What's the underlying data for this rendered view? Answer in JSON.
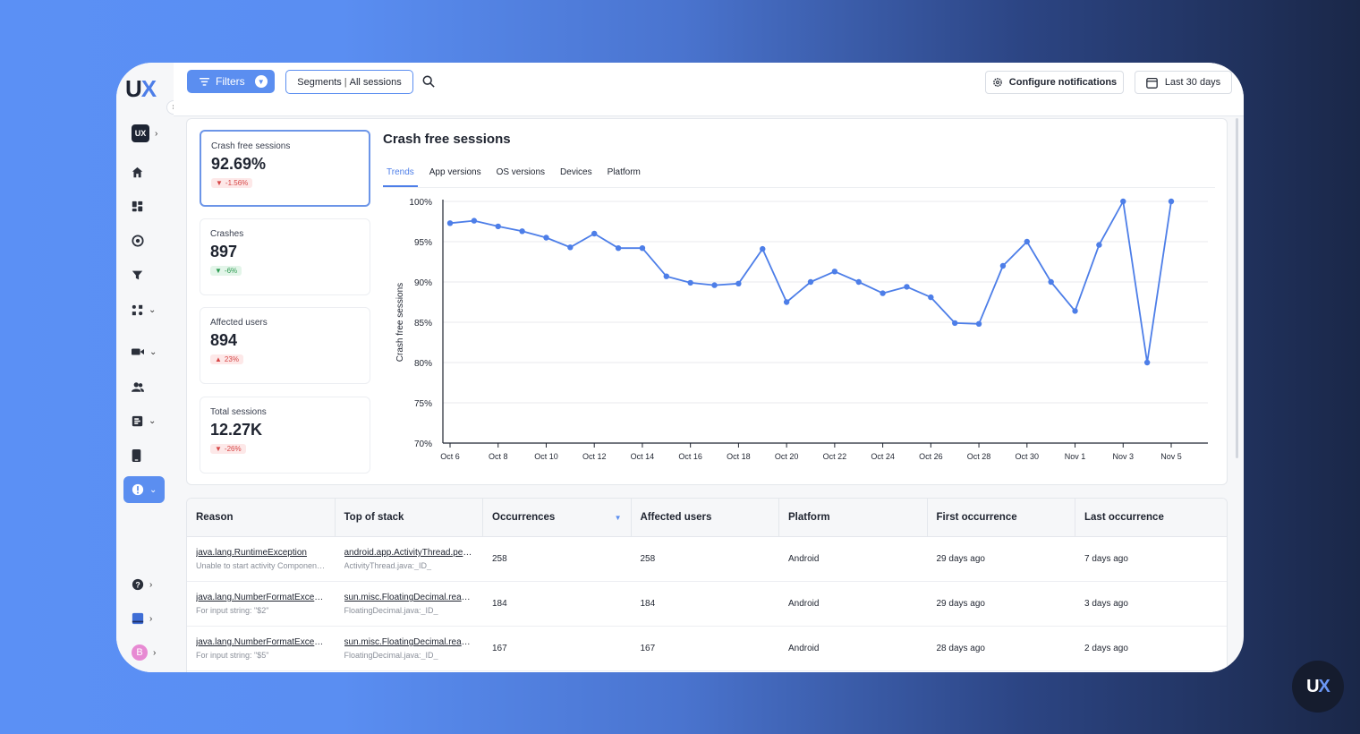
{
  "brand": {
    "logo_u": "U",
    "logo_x": "X",
    "badge_u": "U",
    "badge_x": "X"
  },
  "sidebar": {
    "workspace_badge": "UX",
    "profile_initial": "B",
    "items": [
      "home-icon",
      "dashboard-icon",
      "analytics-icon",
      "funnel-icon",
      "journeys-icon",
      "recordings-icon",
      "users-icon",
      "surveys-icon",
      "mobile-icon",
      "crashes-icon",
      "help-icon",
      "docs-icon"
    ]
  },
  "topbar": {
    "filters_label": "Filters",
    "segments_label": "Segments",
    "segments_sep": "|",
    "segments_value": "All sessions",
    "config_label": "Configure notifications",
    "date_label": "Last 30 days"
  },
  "metrics": [
    {
      "label": "Crash free sessions",
      "value": "92.69%",
      "change": "-1.56%",
      "dir": "down"
    },
    {
      "label": "Crashes",
      "value": "897",
      "change": "-6%",
      "dir": "down"
    },
    {
      "label": "Affected users",
      "value": "894",
      "change": "23%",
      "dir": "up"
    },
    {
      "label": "Total sessions",
      "value": "12.27K",
      "change": "-26%",
      "dir": "down"
    }
  ],
  "chart_panel": {
    "title": "Crash free sessions",
    "tabs": [
      "Trends",
      "App versions",
      "OS versions",
      "Devices",
      "Platform"
    ],
    "active_tab": "Trends"
  },
  "chart_data": {
    "type": "line",
    "title": "Crash free sessions",
    "ylabel": "Crash free sessions",
    "xlabel": "",
    "ylim": [
      70,
      100
    ],
    "yticks": [
      "70%",
      "75%",
      "80%",
      "85%",
      "90%",
      "95%",
      "100%"
    ],
    "xticks": [
      "Oct 6",
      "Oct 8",
      "Oct 10",
      "Oct 12",
      "Oct 14",
      "Oct 16",
      "Oct 18",
      "Oct 20",
      "Oct 22",
      "Oct 24",
      "Oct 26",
      "Oct 28",
      "Oct 30",
      "Nov 1",
      "Nov 3",
      "Nov 5"
    ],
    "grid": true,
    "series": [
      {
        "color": "#4d7ee8",
        "values": [
          97.3,
          97.6,
          96.9,
          96.3,
          95.5,
          94.3,
          96.0,
          94.2,
          94.2,
          90.7,
          89.9,
          89.6,
          89.8,
          94.1,
          87.5,
          90.0,
          91.3,
          90.0,
          88.6,
          89.4,
          88.1,
          84.9,
          84.8,
          92.0,
          95.0,
          90.0,
          86.4,
          94.6,
          100.0,
          80.0,
          100.0
        ]
      }
    ],
    "x_dates": [
      "Oct 6",
      "Oct 7",
      "Oct 8",
      "Oct 9",
      "Oct 10",
      "Oct 11",
      "Oct 12",
      "Oct 13",
      "Oct 14",
      "Oct 15",
      "Oct 16",
      "Oct 17",
      "Oct 18",
      "Oct 19",
      "Oct 20",
      "Oct 21",
      "Oct 22",
      "Oct 23",
      "Oct 24",
      "Oct 25",
      "Oct 26",
      "Oct 27",
      "Oct 28",
      "Oct 29",
      "Oct 30",
      "Oct 31",
      "Nov 1",
      "Nov 2",
      "Nov 3",
      "Nov 4",
      "Nov 5"
    ]
  },
  "table": {
    "columns": [
      "Reason",
      "Top of stack",
      "Occurrences",
      "Affected users",
      "Platform",
      "First occurrence",
      "Last occurrence"
    ],
    "rows": [
      {
        "reason": "java.lang.RuntimeException",
        "reason_sub": "Unable to start activity ComponentI...",
        "stack": "android.app.ActivityThread.perfo...",
        "stack_sub": "ActivityThread.java:_ID_",
        "occurrences": "258",
        "affected": "258",
        "platform": "Android",
        "first": "29 days ago",
        "last": "7 days ago"
      },
      {
        "reason": "java.lang.NumberFormatException",
        "reason_sub": "For input string: \"$2\"",
        "stack": "sun.misc.FloatingDecimal.readJ...",
        "stack_sub": "FloatingDecimal.java:_ID_",
        "occurrences": "184",
        "affected": "184",
        "platform": "Android",
        "first": "29 days ago",
        "last": "3 days ago"
      },
      {
        "reason": "java.lang.NumberFormatException",
        "reason_sub": "For input string: \"$5\"",
        "stack": "sun.misc.FloatingDecimal.readJ...",
        "stack_sub": "FloatingDecimal.java:_ID_",
        "occurrences": "167",
        "affected": "167",
        "platform": "Android",
        "first": "28 days ago",
        "last": "2 days ago"
      }
    ]
  }
}
